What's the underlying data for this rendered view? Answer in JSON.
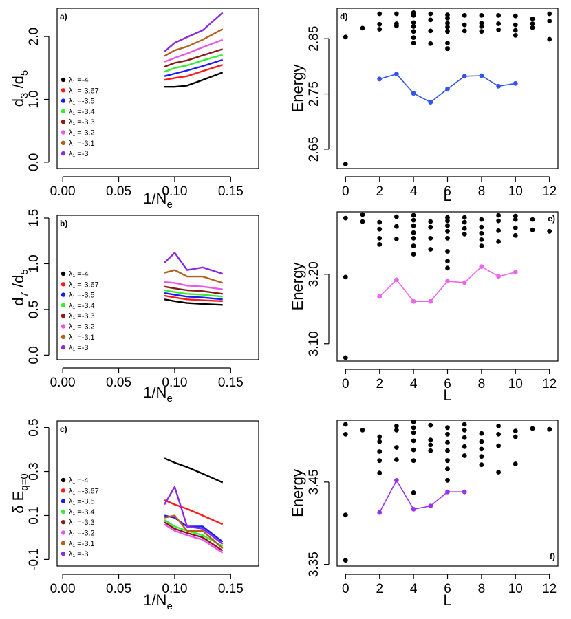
{
  "chart_data": [
    {
      "id": "a",
      "type": "line",
      "panel_label": "a)",
      "xlabel": "1/N",
      "xlabel_sub": "e",
      "ylabel_parts": [
        "d",
        "3",
        " /d",
        "5"
      ],
      "xlim": [
        -0.005,
        0.175
      ],
      "ylim": [
        -0.1,
        2.45
      ],
      "xticks": [
        0.0,
        0.05,
        0.1,
        0.15
      ],
      "xtick_labels": [
        "0.00",
        "0.05",
        "0.10",
        "0.15"
      ],
      "yticks": [
        0.0,
        1.0,
        2.0
      ],
      "ytick_labels": [
        "0.0",
        "1.0",
        "2.0"
      ],
      "x": [
        0.0909,
        0.1,
        0.1111,
        0.125,
        0.1429
      ],
      "series": [
        {
          "name": "λ₁ =-4",
          "color": "#000000",
          "values": [
            1.2,
            1.2,
            1.22,
            1.31,
            1.43
          ]
        },
        {
          "name": "λ₁ =-3.67",
          "color": "#ff1a1a",
          "values": [
            1.31,
            1.34,
            1.37,
            1.45,
            1.55
          ]
        },
        {
          "name": "λ₁ =-3.5",
          "color": "#1a1aff",
          "values": [
            1.37,
            1.41,
            1.46,
            1.53,
            1.63
          ]
        },
        {
          "name": "λ₁ =-3.4",
          "color": "#33ee33",
          "values": [
            1.44,
            1.5,
            1.54,
            1.62,
            1.71
          ]
        },
        {
          "name": "λ₁ =-3.3",
          "color": "#8b1a1a",
          "values": [
            1.52,
            1.58,
            1.62,
            1.7,
            1.8
          ]
        },
        {
          "name": "λ₁ =-3.2",
          "color": "#ee55ee",
          "values": [
            1.6,
            1.66,
            1.73,
            1.83,
            1.95
          ]
        },
        {
          "name": "λ₁ =-3.1",
          "color": "#b5601f",
          "values": [
            1.69,
            1.78,
            1.84,
            1.95,
            2.12
          ]
        },
        {
          "name": "λ₁ =-3",
          "color": "#8a2be2",
          "values": [
            1.76,
            1.9,
            1.99,
            2.1,
            2.38
          ]
        }
      ]
    },
    {
      "id": "b",
      "type": "line",
      "panel_label": "b)",
      "xlabel": "1/N",
      "xlabel_sub": "e",
      "ylabel_parts": [
        "d",
        "7",
        " /d",
        "5"
      ],
      "xlim": [
        -0.005,
        0.175
      ],
      "ylim": [
        -0.05,
        1.53
      ],
      "xticks": [
        0.0,
        0.05,
        0.1,
        0.15
      ],
      "xtick_labels": [
        "0.00",
        "0.05",
        "0.10",
        "0.15"
      ],
      "yticks": [
        0.0,
        0.5,
        1.0,
        1.5
      ],
      "ytick_labels": [
        "0.0",
        "0.5",
        "1.0",
        "1.5"
      ],
      "x": [
        0.0909,
        0.1,
        0.1111,
        0.125,
        0.1429
      ],
      "series": [
        {
          "name": "λ₁ =-4",
          "color": "#000000",
          "values": [
            0.61,
            0.59,
            0.57,
            0.56,
            0.55
          ]
        },
        {
          "name": "λ₁ =-3.67",
          "color": "#ff1a1a",
          "values": [
            0.65,
            0.63,
            0.61,
            0.6,
            0.59
          ]
        },
        {
          "name": "λ₁ =-3.5",
          "color": "#1a1aff",
          "values": [
            0.68,
            0.66,
            0.64,
            0.63,
            0.61
          ]
        },
        {
          "name": "λ₁ =-3.4",
          "color": "#33ee33",
          "values": [
            0.71,
            0.69,
            0.67,
            0.66,
            0.64
          ]
        },
        {
          "name": "λ₁ =-3.3",
          "color": "#8b1a1a",
          "values": [
            0.75,
            0.73,
            0.71,
            0.7,
            0.67
          ]
        },
        {
          "name": "λ₁ =-3.2",
          "color": "#ee55ee",
          "values": [
            0.8,
            0.79,
            0.76,
            0.75,
            0.72
          ]
        },
        {
          "name": "λ₁ =-3.1",
          "color": "#b5601f",
          "values": [
            0.9,
            0.93,
            0.86,
            0.86,
            0.79
          ]
        },
        {
          "name": "λ₁ =-3",
          "color": "#8a2be2",
          "values": [
            1.01,
            1.12,
            0.93,
            0.96,
            0.89
          ]
        }
      ]
    },
    {
      "id": "c",
      "type": "line",
      "panel_label": "c)",
      "xlabel": "1/N",
      "xlabel_sub": "e",
      "ylabel_parts": [
        "δ E",
        "q=0"
      ],
      "xlim": [
        -0.005,
        0.175
      ],
      "ylim": [
        -0.13,
        0.53
      ],
      "xticks": [
        0.0,
        0.05,
        0.1,
        0.15
      ],
      "xtick_labels": [
        "0.00",
        "0.05",
        "0.10",
        "0.15"
      ],
      "yticks": [
        -0.1,
        0.1,
        0.3,
        0.5
      ],
      "ytick_labels": [
        "-0.1",
        "0.1",
        "0.3",
        "0.5"
      ],
      "x": [
        0.0909,
        0.1,
        0.1111,
        0.125,
        0.1429
      ],
      "series": [
        {
          "name": "λ₁ =-4",
          "color": "#000000",
          "values": [
            0.36,
            0.34,
            0.32,
            0.29,
            0.25
          ]
        },
        {
          "name": "λ₁ =-3.67",
          "color": "#ff1a1a",
          "values": [
            0.17,
            0.15,
            0.13,
            0.1,
            0.06
          ]
        },
        {
          "name": "λ₁ =-3.5",
          "color": "#1a1aff",
          "values": [
            0.1,
            0.09,
            0.05,
            0.05,
            -0.02
          ]
        },
        {
          "name": "λ₁ =-3.4",
          "color": "#33ee33",
          "values": [
            0.08,
            0.05,
            0.03,
            0.01,
            -0.04
          ]
        },
        {
          "name": "λ₁ =-3.3",
          "color": "#8b1a1a",
          "values": [
            0.07,
            0.04,
            0.02,
            0.0,
            -0.06
          ]
        },
        {
          "name": "λ₁ =-3.2",
          "color": "#ee55ee",
          "values": [
            0.06,
            0.03,
            0.01,
            -0.01,
            -0.07
          ]
        },
        {
          "name": "λ₁ =-3.1",
          "color": "#b5601f",
          "values": [
            0.09,
            0.1,
            0.03,
            0.03,
            -0.05
          ]
        },
        {
          "name": "λ₁ =-3",
          "color": "#8a2be2",
          "values": [
            0.15,
            0.23,
            0.05,
            0.04,
            -0.03
          ]
        }
      ]
    },
    {
      "id": "d",
      "type": "scatter",
      "panel_label": "d)",
      "xlabel": "L",
      "ylabel": "Energy",
      "xlim": [
        -0.5,
        12.5
      ],
      "ylim": [
        2.615,
        2.905
      ],
      "xticks": [
        0,
        2,
        4,
        6,
        8,
        10,
        12
      ],
      "xtick_labels": [
        "0",
        "2",
        "4",
        "6",
        "8",
        "10",
        "12"
      ],
      "yticks": [
        2.65,
        2.75,
        2.85
      ],
      "ytick_labels": [
        "2.65",
        "2.75",
        "2.85"
      ],
      "points": [
        [
          0,
          2.623
        ],
        [
          0,
          2.853
        ],
        [
          1,
          2.869
        ],
        [
          2,
          2.876
        ],
        [
          2,
          2.867
        ],
        [
          2,
          2.895
        ],
        [
          3,
          2.895
        ],
        [
          3,
          2.877
        ],
        [
          3,
          2.873
        ],
        [
          4,
          2.897
        ],
        [
          4,
          2.892
        ],
        [
          4,
          2.879
        ],
        [
          4,
          2.872
        ],
        [
          4,
          2.863
        ],
        [
          4,
          2.852
        ],
        [
          4,
          2.842
        ],
        [
          5,
          2.895
        ],
        [
          5,
          2.884
        ],
        [
          5,
          2.864
        ],
        [
          5,
          2.841
        ],
        [
          6,
          2.893
        ],
        [
          6,
          2.887
        ],
        [
          6,
          2.878
        ],
        [
          6,
          2.871
        ],
        [
          6,
          2.863
        ],
        [
          6,
          2.842
        ],
        [
          6,
          2.832
        ],
        [
          7,
          2.892
        ],
        [
          7,
          2.875
        ],
        [
          7,
          2.864
        ],
        [
          8,
          2.892
        ],
        [
          8,
          2.878
        ],
        [
          8,
          2.872
        ],
        [
          8,
          2.863
        ],
        [
          9,
          2.892
        ],
        [
          9,
          2.877
        ],
        [
          9,
          2.866
        ],
        [
          10,
          2.891
        ],
        [
          10,
          2.875
        ],
        [
          10,
          2.865
        ],
        [
          10,
          2.856
        ],
        [
          11,
          2.886
        ],
        [
          11,
          2.877
        ],
        [
          11,
          2.87
        ],
        [
          12,
          2.895
        ],
        [
          12,
          2.882
        ],
        [
          12,
          2.849
        ]
      ],
      "highlight": {
        "color": "#3355ee",
        "x": [
          2,
          3,
          4,
          5,
          6,
          7,
          8,
          9,
          10
        ],
        "y": [
          2.777,
          2.786,
          2.751,
          2.735,
          2.759,
          2.782,
          2.783,
          2.764,
          2.769
        ]
      }
    },
    {
      "id": "e",
      "type": "scatter",
      "panel_label": "e)",
      "xlabel": "L",
      "ylabel": "Energy",
      "xlim": [
        -0.5,
        12.5
      ],
      "ylim": [
        3.075,
        3.29
      ],
      "xticks": [
        0,
        2,
        4,
        6,
        8,
        10,
        12
      ],
      "xtick_labels": [
        "0",
        "2",
        "4",
        "6",
        "8",
        "10",
        "12"
      ],
      "yticks": [
        3.1,
        3.2
      ],
      "ytick_labels": [
        "3.10",
        "3.20"
      ],
      "points": [
        [
          0,
          3.08
        ],
        [
          0,
          3.196
        ],
        [
          0,
          3.281
        ],
        [
          1,
          3.286
        ],
        [
          1,
          3.276
        ],
        [
          2,
          3.275
        ],
        [
          2,
          3.265
        ],
        [
          2,
          3.252
        ],
        [
          2,
          3.243
        ],
        [
          3,
          3.283
        ],
        [
          3,
          3.269
        ],
        [
          3,
          3.251
        ],
        [
          4,
          3.285
        ],
        [
          4,
          3.278
        ],
        [
          4,
          3.27
        ],
        [
          4,
          3.26
        ],
        [
          4,
          3.252
        ],
        [
          4,
          3.241
        ],
        [
          4,
          3.229
        ],
        [
          5,
          3.276
        ],
        [
          5,
          3.268
        ],
        [
          5,
          3.252
        ],
        [
          5,
          3.236
        ],
        [
          6,
          3.282
        ],
        [
          6,
          3.277
        ],
        [
          6,
          3.27
        ],
        [
          6,
          3.262
        ],
        [
          6,
          3.252
        ],
        [
          6,
          3.233
        ],
        [
          6,
          3.219
        ],
        [
          6,
          3.209
        ],
        [
          7,
          3.282
        ],
        [
          7,
          3.275
        ],
        [
          7,
          3.266
        ],
        [
          7,
          3.258
        ],
        [
          8,
          3.279
        ],
        [
          8,
          3.268
        ],
        [
          8,
          3.259
        ],
        [
          8,
          3.25
        ],
        [
          8,
          3.241
        ],
        [
          9,
          3.285
        ],
        [
          9,
          3.277
        ],
        [
          9,
          3.263
        ],
        [
          9,
          3.247
        ],
        [
          10,
          3.284
        ],
        [
          10,
          3.279
        ],
        [
          10,
          3.267
        ],
        [
          10,
          3.256
        ],
        [
          11,
          3.279
        ],
        [
          11,
          3.264
        ],
        [
          12,
          3.262
        ]
      ],
      "highlight": {
        "color": "#ee66ee",
        "x": [
          2,
          3,
          4,
          5,
          6,
          7,
          8,
          9,
          10
        ],
        "y": [
          3.168,
          3.192,
          3.161,
          3.161,
          3.19,
          3.188,
          3.211,
          3.197,
          3.203
        ]
      }
    },
    {
      "id": "f",
      "type": "scatter",
      "panel_label": "f)",
      "xlabel": "L",
      "ylabel": "Energy",
      "xlim": [
        -0.5,
        12.5
      ],
      "ylim": [
        3.348,
        3.525
      ],
      "xticks": [
        0,
        2,
        4,
        6,
        8,
        10,
        12
      ],
      "xtick_labels": [
        "0",
        "2",
        "4",
        "6",
        "8",
        "10",
        "12"
      ],
      "yticks": [
        3.35,
        3.45
      ],
      "ytick_labels": [
        "3.35",
        "3.45"
      ],
      "points": [
        [
          0,
          3.355
        ],
        [
          0,
          3.41
        ],
        [
          0,
          3.508
        ],
        [
          0,
          3.52
        ],
        [
          1,
          3.513
        ],
        [
          2,
          3.505
        ],
        [
          2,
          3.499
        ],
        [
          2,
          3.487
        ],
        [
          2,
          3.476
        ],
        [
          2,
          3.461
        ],
        [
          3,
          3.518
        ],
        [
          3,
          3.513
        ],
        [
          3,
          3.492
        ],
        [
          3,
          3.477
        ],
        [
          4,
          3.523
        ],
        [
          4,
          3.516
        ],
        [
          4,
          3.51
        ],
        [
          4,
          3.5
        ],
        [
          4,
          3.489
        ],
        [
          4,
          3.476
        ],
        [
          4,
          3.437
        ],
        [
          5,
          3.519
        ],
        [
          5,
          3.501
        ],
        [
          5,
          3.495
        ],
        [
          5,
          3.488
        ],
        [
          6,
          3.516
        ],
        [
          6,
          3.508
        ],
        [
          6,
          3.498
        ],
        [
          6,
          3.488
        ],
        [
          6,
          3.476
        ],
        [
          6,
          3.466
        ],
        [
          6,
          3.452
        ],
        [
          7,
          3.52
        ],
        [
          7,
          3.513
        ],
        [
          7,
          3.504
        ],
        [
          7,
          3.493
        ],
        [
          7,
          3.482
        ],
        [
          8,
          3.509
        ],
        [
          8,
          3.499
        ],
        [
          8,
          3.49
        ],
        [
          8,
          3.481
        ],
        [
          8,
          3.471
        ],
        [
          9,
          3.518
        ],
        [
          9,
          3.508
        ],
        [
          9,
          3.494
        ],
        [
          9,
          3.462
        ],
        [
          10,
          3.512
        ],
        [
          10,
          3.505
        ],
        [
          10,
          3.472
        ],
        [
          11,
          3.515
        ],
        [
          12,
          3.514
        ]
      ],
      "highlight": {
        "color": "#9933ee",
        "x": [
          2,
          3,
          4,
          5,
          6,
          7
        ],
        "y": [
          3.413,
          3.452,
          3.417,
          3.421,
          3.438,
          3.438
        ]
      }
    }
  ]
}
